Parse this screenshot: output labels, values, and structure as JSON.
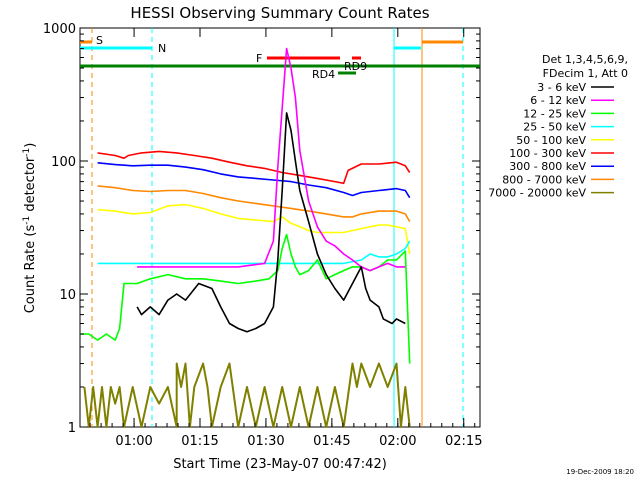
{
  "chart_data": {
    "type": "line",
    "title": "HESSI Observing Summary Count Rates",
    "xlabel": "Start Time (23-May-07 00:47:42)",
    "ylabel": "Count Rate (s⁻¹ detector⁻¹)",
    "ylabel_parts": {
      "main": "Count Rate (s",
      "sup1": "-1",
      "mid": " detector",
      "sup2": "-1",
      "end": ")"
    },
    "yscale": "log",
    "ylim": [
      1,
      1000
    ],
    "xlim_minutes": [
      0,
      91
    ],
    "x_ticks": [
      {
        "minute": 12.3,
        "label": "01:00"
      },
      {
        "minute": 27.3,
        "label": "01:15"
      },
      {
        "minute": 42.3,
        "label": "01:30"
      },
      {
        "minute": 57.3,
        "label": "01:45"
      },
      {
        "minute": 72.3,
        "label": "02:00"
      },
      {
        "minute": 87.3,
        "label": "02:15"
      }
    ],
    "y_ticks": [
      {
        "value": 1,
        "label": "1"
      },
      {
        "value": 10,
        "label": "10"
      },
      {
        "value": 100,
        "label": "100"
      },
      {
        "value": 1000,
        "label": "1000"
      }
    ],
    "legend_header": [
      "Det 1,3,4,5,6,9,",
      "FDecim 1, Att 0"
    ],
    "legend_position": "right",
    "date_stamp": "19-Dec-2009 18:20",
    "series": [
      {
        "name": "3 - 6 keV",
        "color": "#000000",
        "points": [
          [
            13,
            8
          ],
          [
            14,
            7
          ],
          [
            16,
            8
          ],
          [
            18,
            7
          ],
          [
            20,
            9
          ],
          [
            22,
            10
          ],
          [
            24,
            9
          ],
          [
            27,
            12
          ],
          [
            30,
            11
          ],
          [
            32,
            8
          ],
          [
            34,
            6
          ],
          [
            36,
            5.5
          ],
          [
            38,
            5.2
          ],
          [
            40,
            5.5
          ],
          [
            42,
            6
          ],
          [
            44,
            8
          ],
          [
            45,
            18
          ],
          [
            46,
            60
          ],
          [
            47,
            230
          ],
          [
            48,
            170
          ],
          [
            49,
            100
          ],
          [
            50,
            60
          ],
          [
            52,
            35
          ],
          [
            54,
            20
          ],
          [
            56,
            14
          ],
          [
            58,
            11
          ],
          [
            60,
            9
          ],
          [
            62,
            12
          ],
          [
            64,
            16
          ],
          [
            65,
            11
          ],
          [
            66,
            9
          ],
          [
            68,
            8
          ],
          [
            69,
            6.5
          ],
          [
            71,
            6
          ],
          [
            72,
            6.5
          ],
          [
            74,
            6
          ]
        ]
      },
      {
        "name": "6 - 12 keV",
        "color": "#ff00ff",
        "points": [
          [
            13,
            16
          ],
          [
            20,
            16
          ],
          [
            28,
            16
          ],
          [
            36,
            16
          ],
          [
            42,
            17
          ],
          [
            44,
            25
          ],
          [
            45,
            90
          ],
          [
            46,
            250
          ],
          [
            47,
            700
          ],
          [
            48,
            500
          ],
          [
            49,
            300
          ],
          [
            50,
            120
          ],
          [
            52,
            50
          ],
          [
            54,
            32
          ],
          [
            56,
            25
          ],
          [
            58,
            23
          ],
          [
            60,
            20
          ],
          [
            62,
            18
          ],
          [
            64,
            16
          ],
          [
            66,
            15
          ],
          [
            68,
            16
          ],
          [
            70,
            17
          ],
          [
            72,
            16
          ],
          [
            74,
            16
          ]
        ]
      },
      {
        "name": "12 - 25 keV",
        "color": "#00ff00",
        "points": [
          [
            0,
            5
          ],
          [
            2,
            5
          ],
          [
            4,
            4.5
          ],
          [
            6,
            5
          ],
          [
            8,
            4.5
          ],
          [
            9,
            5.5
          ],
          [
            10,
            12
          ],
          [
            13,
            12
          ],
          [
            16,
            13
          ],
          [
            20,
            14
          ],
          [
            24,
            13
          ],
          [
            28,
            13
          ],
          [
            32,
            12.5
          ],
          [
            36,
            12
          ],
          [
            40,
            12.5
          ],
          [
            43,
            13
          ],
          [
            45,
            15
          ],
          [
            46,
            22
          ],
          [
            47,
            28
          ],
          [
            48,
            20
          ],
          [
            49,
            16
          ],
          [
            50,
            14
          ],
          [
            52,
            15
          ],
          [
            54,
            18
          ],
          [
            56,
            13
          ],
          [
            58,
            14
          ],
          [
            60,
            15
          ],
          [
            62,
            16
          ],
          [
            64,
            16
          ],
          [
            66,
            15
          ],
          [
            68,
            16
          ],
          [
            70,
            18
          ],
          [
            72,
            18
          ],
          [
            74,
            21
          ],
          [
            75,
            3
          ]
        ]
      },
      {
        "name": "25 - 50 keV",
        "color": "#00ffff",
        "points": [
          [
            4,
            17
          ],
          [
            8,
            17
          ],
          [
            12,
            17
          ],
          [
            16,
            17
          ],
          [
            20,
            17
          ],
          [
            24,
            17
          ],
          [
            28,
            17
          ],
          [
            32,
            17
          ],
          [
            36,
            17
          ],
          [
            40,
            17
          ],
          [
            44,
            17
          ],
          [
            48,
            17
          ],
          [
            52,
            17
          ],
          [
            56,
            17
          ],
          [
            60,
            17
          ],
          [
            64,
            18
          ],
          [
            66,
            20
          ],
          [
            68,
            19
          ],
          [
            70,
            19
          ],
          [
            72,
            20
          ],
          [
            74,
            22
          ],
          [
            75,
            25
          ]
        ]
      },
      {
        "name": "50 - 100 keV",
        "color": "#ffff00",
        "points": [
          [
            4,
            43
          ],
          [
            8,
            42
          ],
          [
            12,
            40
          ],
          [
            16,
            41
          ],
          [
            20,
            46
          ],
          [
            24,
            47
          ],
          [
            28,
            44
          ],
          [
            32,
            40
          ],
          [
            36,
            37
          ],
          [
            40,
            36
          ],
          [
            44,
            35
          ],
          [
            46,
            38
          ],
          [
            48,
            34
          ],
          [
            50,
            32
          ],
          [
            52,
            30
          ],
          [
            54,
            29
          ],
          [
            56,
            29
          ],
          [
            58,
            29
          ],
          [
            60,
            29
          ],
          [
            62,
            30
          ],
          [
            64,
            31
          ],
          [
            66,
            32
          ],
          [
            68,
            33
          ],
          [
            70,
            33
          ],
          [
            72,
            32
          ],
          [
            74,
            31
          ],
          [
            75,
            20
          ]
        ]
      },
      {
        "name": "100 - 300 keV",
        "color": "#ff0000",
        "points": [
          [
            4,
            115
          ],
          [
            8,
            110
          ],
          [
            10,
            105
          ],
          [
            11,
            110
          ],
          [
            14,
            115
          ],
          [
            18,
            118
          ],
          [
            22,
            115
          ],
          [
            26,
            110
          ],
          [
            30,
            105
          ],
          [
            34,
            98
          ],
          [
            38,
            92
          ],
          [
            42,
            88
          ],
          [
            46,
            82
          ],
          [
            50,
            78
          ],
          [
            54,
            74
          ],
          [
            58,
            70
          ],
          [
            60,
            68
          ],
          [
            61,
            85
          ],
          [
            64,
            95
          ],
          [
            68,
            95
          ],
          [
            72,
            98
          ],
          [
            74,
            92
          ],
          [
            75,
            82
          ]
        ]
      },
      {
        "name": "300 - 800 keV",
        "color": "#0000ff",
        "points": [
          [
            4,
            97
          ],
          [
            8,
            94
          ],
          [
            12,
            92
          ],
          [
            16,
            93
          ],
          [
            20,
            93
          ],
          [
            24,
            90
          ],
          [
            28,
            86
          ],
          [
            32,
            80
          ],
          [
            36,
            76
          ],
          [
            40,
            74
          ],
          [
            44,
            72
          ],
          [
            48,
            70
          ],
          [
            52,
            66
          ],
          [
            56,
            63
          ],
          [
            60,
            58
          ],
          [
            62,
            55
          ],
          [
            64,
            58
          ],
          [
            68,
            60
          ],
          [
            72,
            62
          ],
          [
            74,
            60
          ],
          [
            75,
            53
          ]
        ]
      },
      {
        "name": "800 - 7000 keV",
        "color": "#ff8800",
        "points": [
          [
            4,
            65
          ],
          [
            8,
            63
          ],
          [
            12,
            60
          ],
          [
            16,
            59
          ],
          [
            20,
            60
          ],
          [
            24,
            60
          ],
          [
            28,
            57
          ],
          [
            32,
            53
          ],
          [
            36,
            50
          ],
          [
            40,
            48
          ],
          [
            44,
            46
          ],
          [
            48,
            44
          ],
          [
            52,
            42
          ],
          [
            56,
            40
          ],
          [
            60,
            38
          ],
          [
            62,
            38
          ],
          [
            64,
            40
          ],
          [
            68,
            42
          ],
          [
            72,
            42
          ],
          [
            74,
            40
          ],
          [
            75,
            35
          ]
        ]
      },
      {
        "name": "7000 - 20000 keV",
        "color": "#808000",
        "points": [
          [
            1,
            2
          ],
          [
            2,
            1
          ],
          [
            3,
            2
          ],
          [
            4,
            1
          ],
          [
            5,
            2
          ],
          [
            6,
            1
          ],
          [
            7,
            2
          ],
          [
            8,
            1.5
          ],
          [
            9,
            2
          ],
          [
            10,
            1
          ],
          [
            12,
            2
          ],
          [
            14,
            1
          ],
          [
            16,
            2
          ],
          [
            18,
            1.5
          ],
          [
            20,
            2
          ],
          [
            22,
            1
          ],
          [
            22,
            3
          ],
          [
            23,
            2
          ],
          [
            24,
            3
          ],
          [
            25,
            1
          ],
          [
            26,
            2
          ],
          [
            28,
            3
          ],
          [
            29,
            2
          ],
          [
            30,
            1
          ],
          [
            32,
            2
          ],
          [
            34,
            3
          ],
          [
            36,
            1
          ],
          [
            38,
            2
          ],
          [
            40,
            1
          ],
          [
            42,
            2
          ],
          [
            44,
            1
          ],
          [
            46,
            2
          ],
          [
            48,
            1
          ],
          [
            50,
            2
          ],
          [
            52,
            1
          ],
          [
            54,
            2
          ],
          [
            56,
            1
          ],
          [
            58,
            2
          ],
          [
            60,
            1
          ],
          [
            62,
            3
          ],
          [
            63,
            2
          ],
          [
            64,
            3
          ],
          [
            66,
            2
          ],
          [
            68,
            3
          ],
          [
            70,
            2
          ],
          [
            72,
            3
          ],
          [
            73,
            1
          ],
          [
            74,
            2
          ],
          [
            75,
            1
          ]
        ]
      }
    ],
    "annotations": [
      {
        "label": "S",
        "color": "#ff8800"
      },
      {
        "label": "N",
        "color": "#00ffff"
      },
      {
        "label": "F",
        "color": "#ff0000"
      },
      {
        "label": "RD9",
        "color": "#008000"
      },
      {
        "label": "RD4",
        "color": "#008000"
      }
    ]
  }
}
